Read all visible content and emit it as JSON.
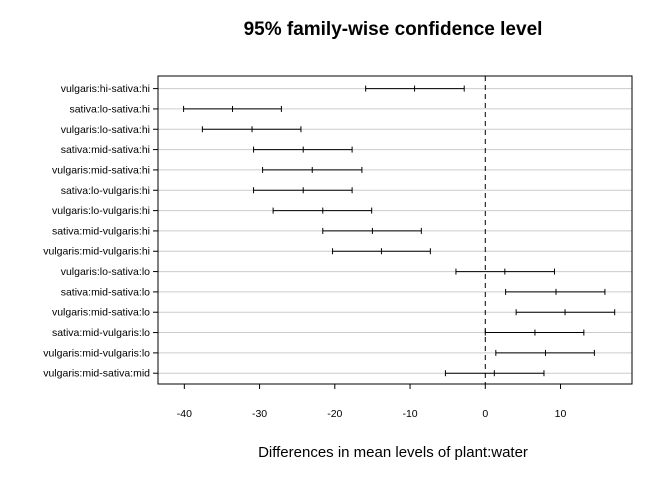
{
  "chart_data": {
    "type": "interval",
    "title": "95% family-wise confidence level",
    "xlabel": "Differences in mean levels of plant:water",
    "ylabel": "",
    "xlim": [
      -43.5,
      19.5
    ],
    "xticks": [
      -40,
      -30,
      -20,
      -10,
      0,
      10
    ],
    "reference_line": 0,
    "grid": "horizontal",
    "categories": [
      "vulgaris:hi-sativa:hi",
      "sativa:lo-sativa:hi",
      "vulgaris:lo-sativa:hi",
      "sativa:mid-sativa:hi",
      "vulgaris:mid-sativa:hi",
      "sativa:lo-vulgaris:hi",
      "vulgaris:lo-vulgaris:hi",
      "sativa:mid-vulgaris:hi",
      "vulgaris:mid-vulgaris:hi",
      "vulgaris:lo-sativa:lo",
      "sativa:mid-sativa:lo",
      "vulgaris:mid-sativa:lo",
      "sativa:mid-vulgaris:lo",
      "vulgaris:mid-vulgaris:lo",
      "vulgaris:mid-sativa:mid"
    ],
    "estimates": [
      -9.4,
      -33.6,
      -31.0,
      -24.2,
      -23.0,
      -24.2,
      -21.6,
      -15.0,
      -13.8,
      2.6,
      9.4,
      10.6,
      6.6,
      8.0,
      1.2
    ],
    "lower": [
      -15.9,
      -40.1,
      -37.6,
      -30.8,
      -29.6,
      -30.8,
      -28.2,
      -21.6,
      -20.3,
      -3.9,
      2.7,
      4.1,
      0.0,
      1.4,
      -5.3
    ],
    "upper": [
      -2.8,
      -27.1,
      -24.5,
      -17.7,
      -16.4,
      -17.7,
      -15.1,
      -8.5,
      -7.3,
      9.2,
      15.9,
      17.2,
      13.1,
      14.5,
      7.8
    ]
  }
}
